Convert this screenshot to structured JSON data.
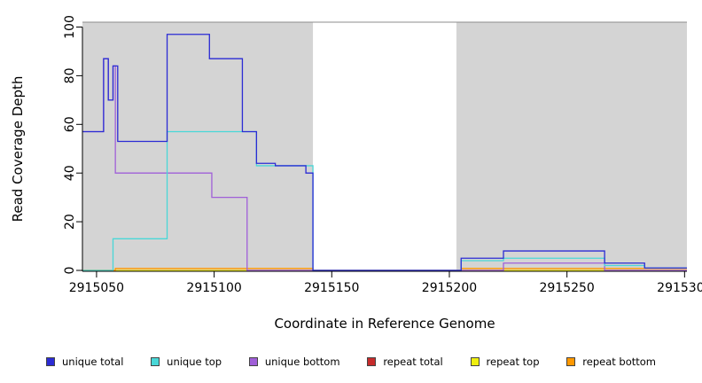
{
  "figure": {
    "background": "#ffffff"
  },
  "chart_data": {
    "type": "line",
    "step": "post",
    "title": "",
    "xlabel": "Coordinate in Reference Genome",
    "ylabel": "Read Coverage Depth",
    "xlim": [
      2915044,
      2915301
    ],
    "ylim": [
      0,
      102
    ],
    "xticks": [
      2915050,
      2915100,
      2915150,
      2915200,
      2915250,
      2915300
    ],
    "yticks": [
      0,
      20,
      40,
      60,
      80,
      100
    ],
    "grid": false,
    "legend_position": "bottom",
    "band_top": 102,
    "band_line_color": "#8c8c8c",
    "shaded_regions": [
      {
        "x0": 2915044,
        "x1": 2915142,
        "color": "#d4d4d4"
      },
      {
        "x0": 2915203,
        "x1": 2915301,
        "color": "#d4d4d4"
      }
    ],
    "series": [
      {
        "name": "repeat total",
        "color": "#c62b2b",
        "points": [
          [
            2915044,
            0
          ]
        ]
      },
      {
        "name": "repeat top",
        "color": "#efef10",
        "points": [
          [
            2915044,
            0
          ]
        ]
      },
      {
        "name": "repeat bottom",
        "color": "#ff9800",
        "points": [
          [
            2915044,
            0
          ],
          [
            2915058,
            0.8
          ],
          [
            2915142,
            0
          ],
          [
            2915205,
            0.8
          ]
        ]
      },
      {
        "name": "unique bottom",
        "color": "#a05fd8",
        "points": [
          [
            2915044,
            57
          ],
          [
            2915053,
            87
          ],
          [
            2915055,
            70
          ],
          [
            2915057,
            84
          ],
          [
            2915058,
            40
          ],
          [
            2915099,
            30
          ],
          [
            2915114,
            0
          ],
          [
            2915223,
            3
          ],
          [
            2915266,
            0
          ]
        ]
      },
      {
        "name": "unique top",
        "color": "#49d7d7",
        "points": [
          [
            2915044,
            0
          ],
          [
            2915057,
            13
          ],
          [
            2915080,
            57
          ],
          [
            2915118,
            43
          ],
          [
            2915142,
            0
          ],
          [
            2915205,
            4
          ],
          [
            2915223,
            5
          ],
          [
            2915266,
            2
          ],
          [
            2915283,
            1
          ]
        ]
      },
      {
        "name": "unique total",
        "color": "#2b2bd4",
        "points": [
          [
            2915044,
            57
          ],
          [
            2915053,
            87
          ],
          [
            2915055,
            70
          ],
          [
            2915057,
            84
          ],
          [
            2915059,
            53
          ],
          [
            2915080,
            97
          ],
          [
            2915098,
            87
          ],
          [
            2915112,
            57
          ],
          [
            2915118,
            44
          ],
          [
            2915126,
            43
          ],
          [
            2915139,
            40
          ],
          [
            2915142,
            0
          ],
          [
            2915205,
            5
          ],
          [
            2915223,
            8
          ],
          [
            2915266,
            3
          ],
          [
            2915283,
            1
          ]
        ]
      }
    ],
    "legend": [
      {
        "label": "unique total",
        "color": "#2b2bd4"
      },
      {
        "label": "unique top",
        "color": "#49d7d7"
      },
      {
        "label": "unique bottom",
        "color": "#a05fd8"
      },
      {
        "label": "repeat total",
        "color": "#c62b2b"
      },
      {
        "label": "repeat top",
        "color": "#efef10"
      },
      {
        "label": "repeat bottom",
        "color": "#ff9800"
      }
    ]
  }
}
